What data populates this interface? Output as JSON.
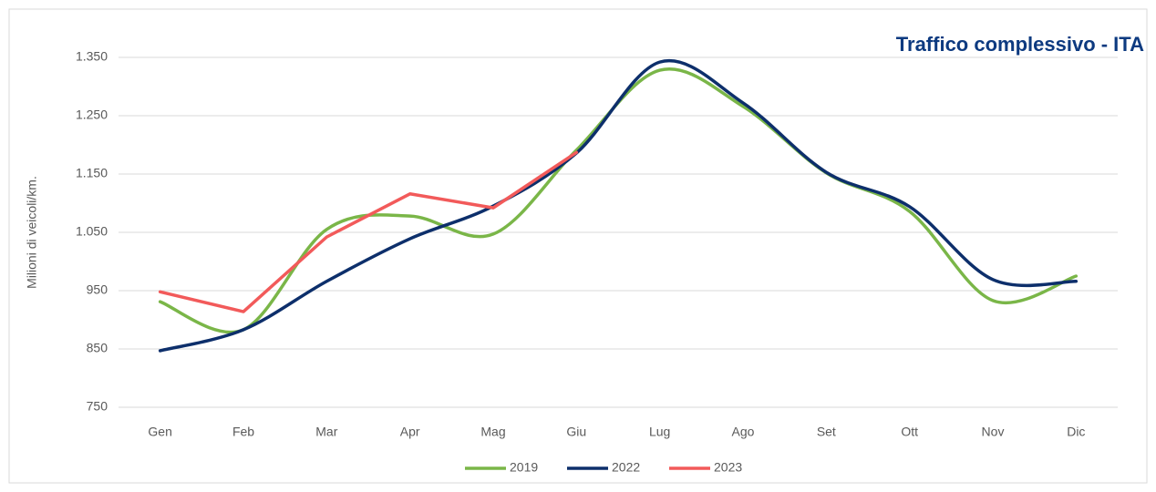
{
  "chart_data": {
    "type": "line",
    "title": "Traffico complessivo - ITA",
    "y_label": "Milioni di veicoli/km.",
    "categories": [
      "Gen",
      "Feb",
      "Mar",
      "Apr",
      "Mag",
      "Giu",
      "Lug",
      "Ago",
      "Set",
      "Ott",
      "Nov",
      "Dic"
    ],
    "series": [
      {
        "name": "2019",
        "color": "#7ab648",
        "smooth": true,
        "values": [
          931,
          883,
          1055,
          1078,
          1047,
          1191,
          1328,
          1266,
          1152,
          1086,
          933,
          975
        ]
      },
      {
        "name": "2022",
        "color": "#0d2f6b",
        "smooth": true,
        "values": [
          847,
          883,
          966,
          1039,
          1095,
          1186,
          1342,
          1272,
          1153,
          1094,
          969,
          966
        ]
      },
      {
        "name": "2023",
        "color": "#f25a5a",
        "smooth": false,
        "values": [
          948,
          914,
          1042,
          1116,
          1092,
          1187,
          null,
          null,
          null,
          null,
          null,
          null
        ]
      }
    ],
    "ylim": [
      750,
      1350
    ],
    "yticks": [
      750,
      850,
      950,
      {
        "value": 1050,
        "label": "1.050"
      },
      {
        "value": 1150,
        "label": "1.150"
      },
      {
        "value": 1250,
        "label": "1.250"
      },
      {
        "value": 1350,
        "label": "1.350"
      }
    ],
    "grid": true,
    "legend": "bottom"
  }
}
